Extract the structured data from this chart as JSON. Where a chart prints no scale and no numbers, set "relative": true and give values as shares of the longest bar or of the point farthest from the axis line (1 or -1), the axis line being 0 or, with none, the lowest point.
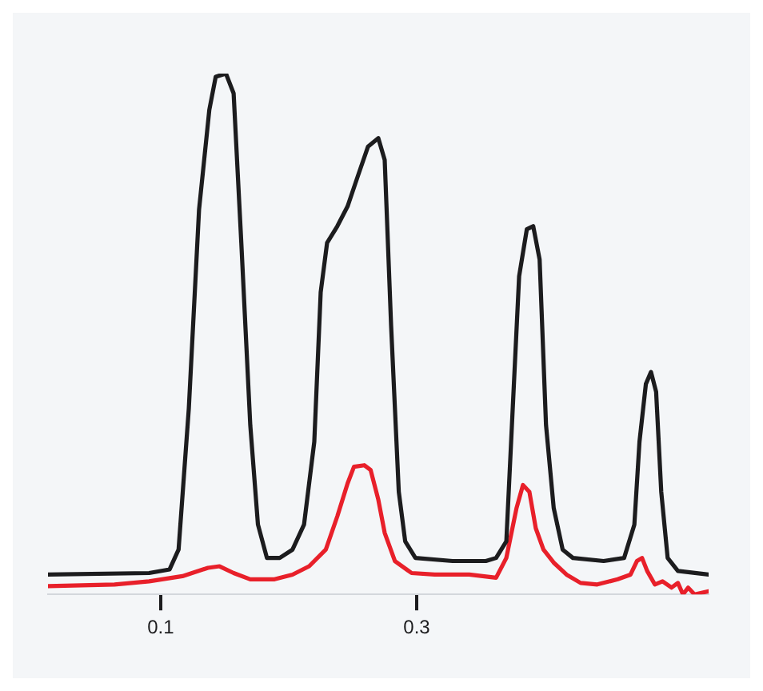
{
  "chart_data": {
    "type": "line",
    "relative": true,
    "xlim": [
      0.012,
      0.528
    ],
    "xticks": [
      0.1,
      0.3
    ],
    "grid": false,
    "legend": false,
    "marker": "none",
    "line_style": "solid",
    "series": [
      {
        "color": "#1c1c1e",
        "x": [
          0.012,
          0.091,
          0.107,
          0.114,
          0.122,
          0.13,
          0.138,
          0.143,
          0.151,
          0.157,
          0.163,
          0.17,
          0.176,
          0.183,
          0.193,
          0.203,
          0.212,
          0.22,
          0.225,
          0.23,
          0.238,
          0.246,
          0.254,
          0.262,
          0.27,
          0.275,
          0.28,
          0.286,
          0.291,
          0.299,
          0.328,
          0.354,
          0.362,
          0.37,
          0.375,
          0.38,
          0.386,
          0.391,
          0.396,
          0.401,
          0.407,
          0.414,
          0.422,
          0.446,
          0.462,
          0.47,
          0.474,
          0.479,
          0.483,
          0.487,
          0.491,
          0.496,
          0.504,
          0.528
        ],
        "values": [
          0.038,
          0.041,
          0.048,
          0.086,
          0.357,
          0.739,
          0.93,
          0.994,
          1,
          0.962,
          0.675,
          0.325,
          0.134,
          0.07,
          0.07,
          0.086,
          0.134,
          0.293,
          0.58,
          0.675,
          0.707,
          0.745,
          0.803,
          0.86,
          0.876,
          0.834,
          0.516,
          0.197,
          0.102,
          0.07,
          0.064,
          0.064,
          0.07,
          0.102,
          0.357,
          0.611,
          0.701,
          0.707,
          0.643,
          0.325,
          0.166,
          0.086,
          0.07,
          0.064,
          0.07,
          0.134,
          0.293,
          0.404,
          0.427,
          0.389,
          0.197,
          0.07,
          0.045,
          0.038
        ]
      },
      {
        "color": "#e8202a",
        "x": [
          0.012,
          0.064,
          0.091,
          0.117,
          0.137,
          0.146,
          0.157,
          0.17,
          0.189,
          0.203,
          0.216,
          0.229,
          0.238,
          0.246,
          0.251,
          0.259,
          0.264,
          0.27,
          0.275,
          0.283,
          0.296,
          0.314,
          0.341,
          0.362,
          0.37,
          0.378,
          0.383,
          0.388,
          0.393,
          0.399,
          0.407,
          0.417,
          0.428,
          0.441,
          0.457,
          0.467,
          0.472,
          0.476,
          0.48,
          0.486,
          0.492,
          0.499,
          0.504,
          0.508,
          0.512,
          0.517,
          0.528
        ],
        "values": [
          0.016,
          0.019,
          0.025,
          0.035,
          0.051,
          0.054,
          0.041,
          0.029,
          0.029,
          0.038,
          0.054,
          0.086,
          0.15,
          0.213,
          0.245,
          0.248,
          0.239,
          0.182,
          0.118,
          0.064,
          0.041,
          0.038,
          0.038,
          0.032,
          0.07,
          0.166,
          0.21,
          0.197,
          0.127,
          0.086,
          0.061,
          0.038,
          0.022,
          0.019,
          0.029,
          0.038,
          0.064,
          0.07,
          0.045,
          0.019,
          0.025,
          0.013,
          0.022,
          0,
          0.013,
          0,
          0.006
        ]
      }
    ]
  }
}
